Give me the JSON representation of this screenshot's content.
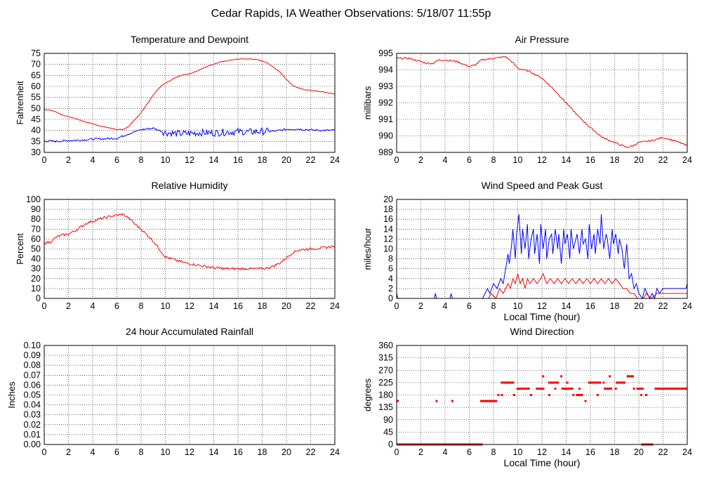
{
  "page": {
    "title": "Cedar Rapids, IA Weather Observations: 5/18/07 11:55p"
  },
  "colors": {
    "red": "#ff0000",
    "blue": "#0000ff",
    "grid": "#000000"
  },
  "chart_data": [
    {
      "id": "temp",
      "type": "line",
      "title": "Temperature and Dewpoint",
      "xlabel": "",
      "ylabel": "Fahrenheit",
      "xlim": [
        0,
        24
      ],
      "ylim": [
        30,
        75
      ],
      "xticks": [
        0,
        2,
        4,
        6,
        8,
        10,
        12,
        14,
        16,
        18,
        20,
        22,
        24
      ],
      "yticks": [
        30,
        35,
        40,
        45,
        50,
        55,
        60,
        65,
        70,
        75
      ],
      "grid": true,
      "series": [
        {
          "color": "#ff0000",
          "noise": 0.15,
          "x": [
            0,
            0.5,
            1,
            1.5,
            2,
            2.5,
            3,
            3.5,
            4,
            4.5,
            5,
            5.5,
            6,
            6.5,
            7,
            7.5,
            8,
            8.5,
            9,
            9.5,
            10,
            10.5,
            11,
            11.5,
            12,
            12.5,
            13,
            13.5,
            14,
            14.5,
            15,
            15.5,
            16,
            16.5,
            17,
            17.5,
            18,
            18.5,
            19,
            19.5,
            20,
            20.5,
            21,
            21.5,
            22,
            22.5,
            23,
            23.5,
            24
          ],
          "y": [
            49.5,
            49.2,
            48.3,
            47,
            46.2,
            45.5,
            44.6,
            43.7,
            43,
            42.2,
            41.5,
            41,
            40.4,
            40.3,
            42,
            45,
            48,
            52,
            56,
            59.5,
            61.5,
            63,
            64.5,
            65.3,
            65.6,
            66.8,
            68,
            69.2,
            70,
            71,
            71.5,
            72,
            72.4,
            72.5,
            72.5,
            72.3,
            71.5,
            70.5,
            68.5,
            66.3,
            63.2,
            60.5,
            59.2,
            58.5,
            58.2,
            57.8,
            57.5,
            57,
            56.5
          ]
        },
        {
          "color": "#0000ff",
          "noise": 1.6,
          "noiseFrom": 9.8,
          "noiseTo": 18.5,
          "noiseLow": 0.45,
          "x": [
            0,
            1,
            2,
            3,
            4,
            5,
            6,
            7,
            8,
            9,
            10,
            11,
            12,
            13,
            14,
            15,
            16,
            17,
            18,
            19,
            20,
            21,
            22,
            23,
            24
          ],
          "y": [
            35.2,
            35,
            35.4,
            35.6,
            36,
            36.2,
            36.4,
            38.5,
            40.3,
            41,
            39,
            38.5,
            38.6,
            39,
            38.8,
            39.2,
            39.4,
            39.3,
            39.5,
            39.6,
            40.5,
            40.6,
            40.2,
            40,
            40
          ]
        }
      ]
    },
    {
      "id": "pressure",
      "type": "line",
      "title": "Air Pressure",
      "xlabel": "",
      "ylabel": "millibars",
      "xlim": [
        0,
        24
      ],
      "ylim": [
        989,
        995
      ],
      "xticks": [
        0,
        2,
        4,
        6,
        8,
        10,
        12,
        14,
        16,
        18,
        20,
        22,
        24
      ],
      "yticks": [
        989,
        990,
        991,
        992,
        993,
        994,
        995
      ],
      "grid": true,
      "series": [
        {
          "color": "#ff0000",
          "noise": 0.05,
          "x": [
            0,
            1,
            2,
            2.5,
            3,
            3.5,
            4,
            5,
            6,
            6.5,
            7,
            8,
            9,
            9.5,
            10,
            11,
            12,
            13,
            14,
            15,
            16,
            17,
            18,
            19,
            19.5,
            20,
            21,
            22,
            23,
            24
          ],
          "y": [
            994.7,
            994.7,
            994.5,
            994.4,
            994.4,
            994.6,
            994.6,
            994.5,
            994.2,
            994.3,
            994.6,
            994.7,
            994.8,
            994.5,
            994.1,
            993.9,
            993.5,
            992.8,
            992,
            991.2,
            990.5,
            989.9,
            989.6,
            989.3,
            989.4,
            989.6,
            989.7,
            989.9,
            989.7,
            989.4
          ]
        }
      ]
    },
    {
      "id": "humidity",
      "type": "line",
      "title": "Relative Humidity",
      "xlabel": "",
      "ylabel": "Percent",
      "xlim": [
        0,
        24
      ],
      "ylim": [
        0,
        100
      ],
      "xticks": [
        0,
        2,
        4,
        6,
        8,
        10,
        12,
        14,
        16,
        18,
        20,
        22,
        24
      ],
      "yticks": [
        0,
        10,
        20,
        30,
        40,
        50,
        60,
        70,
        80,
        90,
        100
      ],
      "grid": true,
      "series": [
        {
          "color": "#ff0000",
          "noise": 1.2,
          "x": [
            0,
            0.5,
            1,
            1.5,
            2,
            2.5,
            3,
            3.5,
            4,
            4.5,
            5,
            5.5,
            6,
            6.5,
            7,
            7.5,
            8,
            8.5,
            9,
            9.5,
            10,
            11,
            12,
            13,
            14,
            15,
            16,
            17,
            18,
            18.5,
            19,
            19.5,
            20,
            20.5,
            21,
            22,
            23,
            24
          ],
          "y": [
            56,
            57,
            62,
            64,
            65,
            68,
            72,
            76,
            78,
            80,
            81.5,
            83,
            84,
            85,
            81,
            75,
            70,
            64,
            58,
            50,
            42,
            38,
            35,
            33,
            31,
            30,
            30,
            30,
            30,
            31,
            33,
            36,
            41,
            46,
            49,
            50,
            51,
            53
          ]
        }
      ]
    },
    {
      "id": "wind",
      "type": "line",
      "title": "Wind Speed and Peak Gust",
      "xlabel": "Local Time (hour)",
      "ylabel": "miles/hour",
      "xlim": [
        0,
        24
      ],
      "ylim": [
        0,
        20
      ],
      "xticks": [
        0,
        2,
        4,
        6,
        8,
        10,
        12,
        14,
        16,
        18,
        20,
        22,
        24
      ],
      "yticks": [
        0,
        2,
        4,
        6,
        8,
        10,
        12,
        14,
        16,
        18,
        20
      ],
      "grid": true,
      "series": [
        {
          "color": "#0000ff",
          "noise": 0,
          "x": [
            0,
            0.1,
            0.2,
            0.35,
            3.1,
            3.2,
            3.3,
            4.4,
            4.5,
            4.6,
            7.1,
            7.3,
            7.5,
            7.7,
            8,
            8.3,
            8.6,
            8.8,
            9,
            9.2,
            9.3,
            9.5,
            9.6,
            9.8,
            9.9,
            10.1,
            10.3,
            10.4,
            10.6,
            10.8,
            10.9,
            11.1,
            11.3,
            11.4,
            11.6,
            11.8,
            11.9,
            12.1,
            12.3,
            12.4,
            12.6,
            12.8,
            12.9,
            13.1,
            13.3,
            13.4,
            13.6,
            13.8,
            13.9,
            14.1,
            14.3,
            14.4,
            14.6,
            14.8,
            14.9,
            15.1,
            15.3,
            15.4,
            15.6,
            15.8,
            15.9,
            16.1,
            16.3,
            16.4,
            16.6,
            16.8,
            16.9,
            17.1,
            17.3,
            17.4,
            17.6,
            17.8,
            17.9,
            18.1,
            18.3,
            18.4,
            18.6,
            18.8,
            19,
            19.2,
            19.4,
            19.6,
            19.8,
            20,
            20.3,
            20.5,
            20.7,
            20.9,
            21.1,
            21.3,
            21.5,
            21.7,
            22,
            22.5,
            23,
            23.5,
            23.9,
            24
          ],
          "y": [
            1,
            0,
            0,
            0,
            0,
            1,
            0,
            0,
            1,
            0,
            0,
            1,
            2,
            1,
            3,
            2,
            4,
            3,
            6,
            9,
            7,
            11,
            14,
            8,
            13,
            17,
            9,
            14,
            10,
            15,
            8,
            12,
            14,
            9,
            13,
            7,
            15,
            10,
            14,
            8,
            12,
            13,
            9,
            14,
            10,
            13,
            7,
            14,
            11,
            13,
            8,
            14,
            10,
            12,
            13,
            9,
            14,
            11,
            12,
            8,
            15,
            10,
            13,
            9,
            14,
            11,
            17,
            10,
            13,
            12,
            8,
            14,
            11,
            13,
            9,
            12,
            10,
            6,
            11,
            4,
            5,
            2,
            3,
            1,
            0,
            2,
            1,
            0,
            1,
            0,
            2,
            1,
            2,
            2,
            2,
            2,
            2,
            3
          ]
        },
        {
          "color": "#ff0000",
          "noise": 0,
          "x": [
            0,
            7.6,
            7.8,
            8.2,
            8.5,
            8.8,
            9,
            9.2,
            9.4,
            9.6,
            9.8,
            10,
            10.2,
            10.4,
            10.6,
            10.8,
            11,
            11.3,
            11.6,
            11.9,
            12.1,
            12.4,
            12.7,
            13,
            13.3,
            13.6,
            13.9,
            14.2,
            14.5,
            14.8,
            15.1,
            15.4,
            15.7,
            16,
            16.3,
            16.6,
            16.9,
            17.2,
            17.5,
            17.8,
            18.1,
            18.4,
            18.7,
            19,
            19.3,
            19.6,
            19.9,
            20.2,
            20.4,
            20.6,
            21,
            21.5,
            22,
            23,
            24
          ],
          "y": [
            0,
            0,
            1,
            0,
            2,
            1,
            2,
            3,
            2,
            4,
            3,
            5,
            3,
            4,
            2,
            4,
            3,
            4,
            3,
            4,
            5,
            3,
            4,
            3,
            4,
            3,
            4,
            3,
            4,
            3,
            4,
            3,
            4,
            3,
            4,
            3,
            4,
            3,
            4,
            3,
            4,
            3,
            2,
            2,
            1,
            1,
            0,
            0,
            0,
            1,
            0,
            1,
            1,
            1,
            1
          ]
        }
      ]
    },
    {
      "id": "rain",
      "type": "line",
      "title": "24 hour Accumulated Rainfall",
      "xlabel": "",
      "ylabel": "Inches",
      "xlim": [
        0,
        24
      ],
      "ylim": [
        0,
        0.1
      ],
      "xticks": [
        0,
        2,
        4,
        6,
        8,
        10,
        12,
        14,
        16,
        18,
        20,
        22,
        24
      ],
      "yticks": [
        "0.00",
        "0.01",
        "0.02",
        "0.03",
        "0.04",
        "0.05",
        "0.06",
        "0.07",
        "0.08",
        "0.09",
        "0.10"
      ],
      "grid": true,
      "series": [
        {
          "color": "#ff0000",
          "noise": 0,
          "x": [
            0,
            24
          ],
          "y": [
            0,
            0
          ]
        }
      ]
    },
    {
      "id": "direction",
      "type": "scatter",
      "title": "Wind Direction",
      "xlabel": "Local Time (hour)",
      "ylabel": "degrees",
      "xlim": [
        0,
        24
      ],
      "ylim": [
        0,
        360
      ],
      "xticks": [
        0,
        2,
        4,
        6,
        8,
        10,
        12,
        14,
        16,
        18,
        20,
        22,
        24
      ],
      "yticks": [
        0,
        45,
        90,
        135,
        180,
        225,
        270,
        315,
        360
      ],
      "grid": true,
      "series": [
        {
          "color": "#ff0000",
          "markerSize": 3,
          "x": [
            0.1,
            3.3,
            4.6,
            7.8,
            8.4,
            8.7,
            9.2,
            9.7,
            10.2,
            10.6,
            11.1,
            11.6,
            12.1,
            12.6,
            13.1,
            13.6,
            14.1,
            14.6,
            15.1,
            15.6,
            16.1,
            16.6,
            17.1,
            17.6,
            18.1,
            18.6,
            19.1,
            19.6,
            20.2,
            20.6
          ],
          "y": [
            158,
            158,
            158,
            158,
            180,
            180,
            225,
            180,
            203,
            203,
            180,
            203,
            248,
            180,
            203,
            248,
            225,
            180,
            203,
            158,
            225,
            180,
            225,
            248,
            203,
            225,
            248,
            203,
            180,
            180
          ]
        },
        {
          "color": "#ff0000",
          "markerSize": 3,
          "runs": true,
          "segments": [
            [
              0,
              7.1,
              0
            ],
            [
              6.9,
              8.3,
              158
            ],
            [
              8.6,
              9.7,
              225
            ],
            [
              9.9,
              11.0,
              203
            ],
            [
              11.5,
              12.2,
              203
            ],
            [
              12.5,
              13.4,
              225
            ],
            [
              13.6,
              14.6,
              203
            ],
            [
              14.8,
              15.4,
              180
            ],
            [
              15.8,
              16.9,
              225
            ],
            [
              17.1,
              17.8,
              203
            ],
            [
              18.1,
              18.9,
              225
            ],
            [
              19.0,
              19.6,
              248
            ],
            [
              19.8,
              20.4,
              203
            ],
            [
              20.2,
              21.2,
              0
            ],
            [
              21.3,
              24,
              203
            ]
          ]
        }
      ]
    }
  ]
}
